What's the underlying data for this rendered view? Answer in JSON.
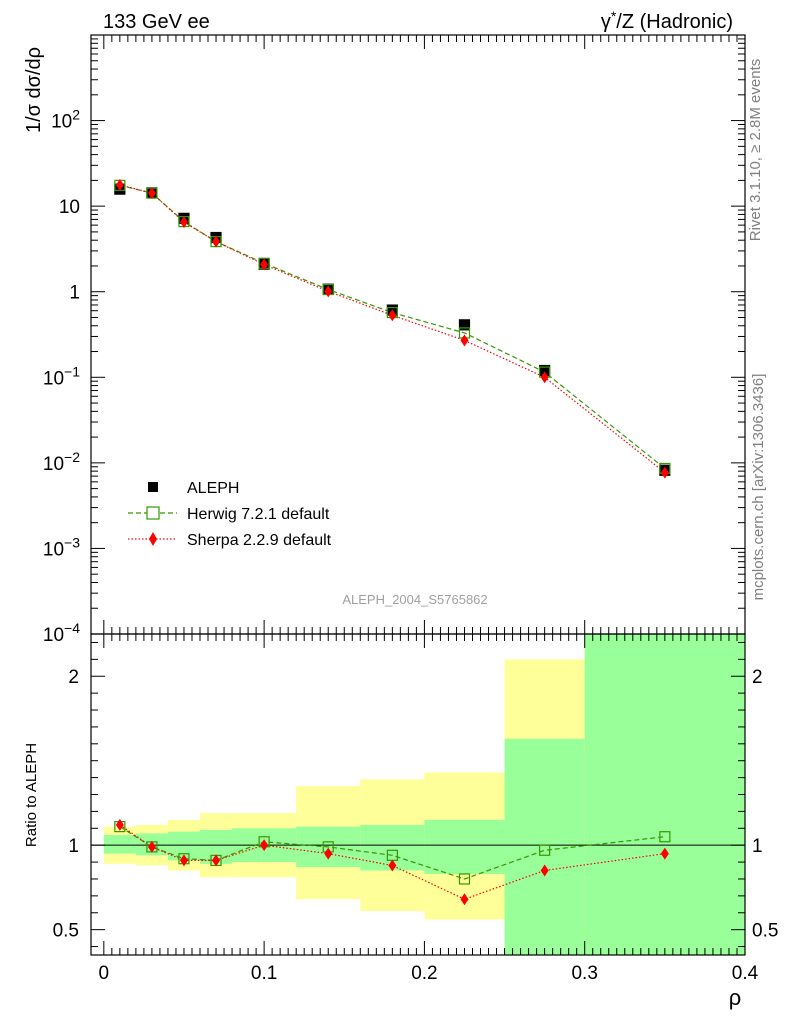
{
  "header": {
    "left_title": "133 GeV ee",
    "right_title_prefix": "γ",
    "right_title_sup": "*",
    "right_title_suffix": "/Z (Hadronic)"
  },
  "side_labels": {
    "rivet": "Rivet 3.1.10, ≥ 2.8M events",
    "mcplots": "mcplots.cern.ch [arXiv:1306.3436]"
  },
  "watermark": "ALEPH_2004_S5765862",
  "legend": [
    {
      "name": "ALEPH",
      "marker": "filled-square",
      "color": "#000000"
    },
    {
      "name": "Herwig 7.2.1 default",
      "marker": "open-square",
      "color": "#339900",
      "dash": "dashed"
    },
    {
      "name": "Sherpa 2.2.9 default",
      "marker": "diamond",
      "color": "#ff0000",
      "dash": "dotted"
    }
  ],
  "chart_data": [
    {
      "type": "scatter",
      "panel": "main",
      "ylabel": "1/σ  dσ/dρ",
      "yscale": "log",
      "ylim": [
        0.0001,
        1000
      ],
      "xlim": [
        -0.008,
        0.4
      ],
      "yticks": [
        {
          "v": 0.0001,
          "base": "10",
          "exp": "−4"
        },
        {
          "v": 0.001,
          "base": "10",
          "exp": "−3"
        },
        {
          "v": 0.01,
          "base": "10",
          "exp": "−2"
        },
        {
          "v": 0.1,
          "base": "10",
          "exp": "−1"
        },
        {
          "v": 1,
          "base": "1",
          "exp": ""
        },
        {
          "v": 10,
          "base": "10",
          "exp": ""
        },
        {
          "v": 100,
          "base": "10",
          "exp": "2"
        }
      ],
      "x": [
        0.01,
        0.03,
        0.05,
        0.07,
        0.1,
        0.14,
        0.18,
        0.225,
        0.275,
        0.35
      ],
      "series": [
        {
          "name": "ALEPH",
          "values": [
            15.8,
            14.3,
            7.2,
            4.3,
            2.1,
            1.07,
            0.61,
            0.41,
            0.12,
            0.0082
          ]
        },
        {
          "name": "Herwig 7.2.1 default",
          "values": [
            17.5,
            14.2,
            6.6,
            3.85,
            2.15,
            1.06,
            0.57,
            0.33,
            0.115,
            0.0086
          ]
        },
        {
          "name": "Sherpa 2.2.9 default",
          "values": [
            17.7,
            14.2,
            6.5,
            3.85,
            2.08,
            1.01,
            0.53,
            0.27,
            0.1,
            0.0077
          ]
        }
      ]
    },
    {
      "type": "scatter",
      "panel": "ratio",
      "ylabel": "Ratio to ALEPH",
      "xlabel": "ρ",
      "ylim": [
        0.35,
        2.25
      ],
      "xlim": [
        -0.008,
        0.4
      ],
      "yticks": [
        {
          "v": 0.5,
          "label": "0.5"
        },
        {
          "v": 1,
          "label": "1"
        },
        {
          "v": 2,
          "label": "2"
        }
      ],
      "xticks": [
        {
          "v": 0,
          "label": "0"
        },
        {
          "v": 0.1,
          "label": "0.1"
        },
        {
          "v": 0.2,
          "label": "0.2"
        },
        {
          "v": 0.3,
          "label": "0.3"
        },
        {
          "v": 0.4,
          "label": "0.4"
        }
      ],
      "bins": [
        [
          0,
          0.02
        ],
        [
          0.02,
          0.04
        ],
        [
          0.04,
          0.06
        ],
        [
          0.06,
          0.08
        ],
        [
          0.08,
          0.12
        ],
        [
          0.12,
          0.16
        ],
        [
          0.16,
          0.2
        ],
        [
          0.2,
          0.25
        ],
        [
          0.25,
          0.3
        ],
        [
          0.3,
          0.4
        ]
      ],
      "band_inner": [
        [
          0.95,
          1.06
        ],
        [
          0.94,
          1.07
        ],
        [
          0.91,
          1.08
        ],
        [
          0.89,
          1.09
        ],
        [
          0.9,
          1.1
        ],
        [
          0.87,
          1.11
        ],
        [
          0.85,
          1.12
        ],
        [
          0.83,
          1.15
        ],
        [
          0.35,
          1.63
        ],
        [
          0.35,
          2.25
        ]
      ],
      "band_outer": [
        [
          0.89,
          1.11
        ],
        [
          0.88,
          1.12
        ],
        [
          0.85,
          1.15
        ],
        [
          0.81,
          1.19
        ],
        [
          0.81,
          1.19
        ],
        [
          0.68,
          1.35
        ],
        [
          0.61,
          1.39
        ],
        [
          0.56,
          1.43
        ],
        [
          0.35,
          2.1
        ],
        [
          0.35,
          2.25
        ]
      ],
      "x": [
        0.01,
        0.03,
        0.05,
        0.07,
        0.1,
        0.14,
        0.18,
        0.225,
        0.275,
        0.35
      ],
      "series": [
        {
          "name": "Herwig 7.2.1 default",
          "values": [
            1.11,
            0.99,
            0.92,
            0.91,
            1.02,
            0.99,
            0.94,
            0.8,
            0.97,
            1.05
          ]
        },
        {
          "name": "Sherpa 2.2.9 default",
          "values": [
            1.12,
            0.99,
            0.91,
            0.91,
            1.0,
            0.95,
            0.88,
            0.68,
            0.85,
            0.95
          ]
        }
      ]
    }
  ],
  "colors": {
    "band_inner": "#99ff99",
    "band_outer": "#ffff99",
    "herwig": "#339900",
    "sherpa": "#ff0000",
    "data": "#000000",
    "side_text": "#808080",
    "watermark": "#a0a0a0"
  }
}
